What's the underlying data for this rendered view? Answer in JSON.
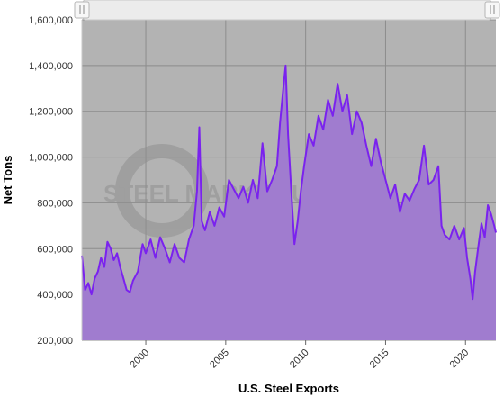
{
  "chart_data": {
    "type": "area",
    "xlabel": "U.S. Steel Exports",
    "ylabel": "Net Tons",
    "xlim": [
      1996.0,
      2021.9
    ],
    "ylim": [
      200000,
      1600000
    ],
    "y_ticks": [
      200000,
      400000,
      600000,
      800000,
      1000000,
      1200000,
      1400000,
      1600000
    ],
    "y_tick_labels": [
      "200,000",
      "400,000",
      "600,000",
      "800,000",
      "1,000,000",
      "1,200,000",
      "1,400,000",
      "1,600,000"
    ],
    "x_ticks": [
      2000,
      2005,
      2010,
      2015,
      2020
    ],
    "x_tick_labels": [
      "2000",
      "2005",
      "2010",
      "2015",
      "2020"
    ],
    "grid": true,
    "watermark": "STEEL MARKET UPDATE",
    "colors": {
      "line": "#7a22ee",
      "fill": "#a07ccf",
      "plot_background": "#b3b3b3",
      "grid": "#8c8c8c",
      "navigator": "#ececec"
    },
    "series": [
      {
        "x": [
          1996.0,
          1996.2,
          1996.4,
          1996.6,
          1996.8,
          1997.0,
          1997.2,
          1997.4,
          1997.6,
          1997.8,
          1998.0,
          1998.2,
          1998.4,
          1998.6,
          1998.8,
          1999.0,
          1999.2,
          1999.5,
          1999.8,
          2000.0,
          2000.3,
          2000.6,
          2000.9,
          2001.2,
          2001.5,
          2001.8,
          2002.1,
          2002.4,
          2002.7,
          2003.0,
          2003.2,
          2003.35,
          2003.5,
          2003.7,
          2004.0,
          2004.3,
          2004.6,
          2004.9,
          2005.2,
          2005.5,
          2005.8,
          2006.1,
          2006.4,
          2006.7,
          2007.0,
          2007.3,
          2007.6,
          2007.9,
          2008.2,
          2008.4,
          2008.6,
          2008.75,
          2008.9,
          2009.1,
          2009.3,
          2009.5,
          2009.7,
          2009.9,
          2010.2,
          2010.5,
          2010.8,
          2011.1,
          2011.4,
          2011.7,
          2012.0,
          2012.3,
          2012.6,
          2012.9,
          2013.2,
          2013.5,
          2013.8,
          2014.1,
          2014.4,
          2014.7,
          2015.0,
          2015.3,
          2015.6,
          2015.9,
          2016.2,
          2016.5,
          2016.8,
          2017.1,
          2017.4,
          2017.7,
          2018.0,
          2018.3,
          2018.5,
          2018.7,
          2019.0,
          2019.3,
          2019.6,
          2019.9,
          2020.1,
          2020.3,
          2020.45,
          2020.6,
          2020.8,
          2021.0,
          2021.2,
          2021.4,
          2021.6,
          2021.8,
          2021.9
        ],
        "y": [
          570000,
          420000,
          450000,
          400000,
          470000,
          500000,
          560000,
          520000,
          630000,
          600000,
          550000,
          580000,
          520000,
          470000,
          420000,
          410000,
          460000,
          500000,
          620000,
          580000,
          640000,
          560000,
          650000,
          600000,
          540000,
          620000,
          560000,
          540000,
          640000,
          700000,
          850000,
          1130000,
          720000,
          680000,
          760000,
          700000,
          780000,
          740000,
          900000,
          860000,
          820000,
          870000,
          800000,
          900000,
          820000,
          1060000,
          850000,
          900000,
          960000,
          1150000,
          1300000,
          1400000,
          1100000,
          850000,
          620000,
          720000,
          850000,
          960000,
          1100000,
          1050000,
          1180000,
          1120000,
          1250000,
          1180000,
          1320000,
          1200000,
          1270000,
          1100000,
          1200000,
          1150000,
          1050000,
          960000,
          1080000,
          980000,
          900000,
          820000,
          880000,
          760000,
          840000,
          810000,
          860000,
          900000,
          1050000,
          880000,
          900000,
          960000,
          700000,
          660000,
          640000,
          700000,
          640000,
          690000,
          560000,
          470000,
          380000,
          500000,
          610000,
          710000,
          650000,
          790000,
          750000,
          700000,
          670000
        ]
      }
    ]
  }
}
